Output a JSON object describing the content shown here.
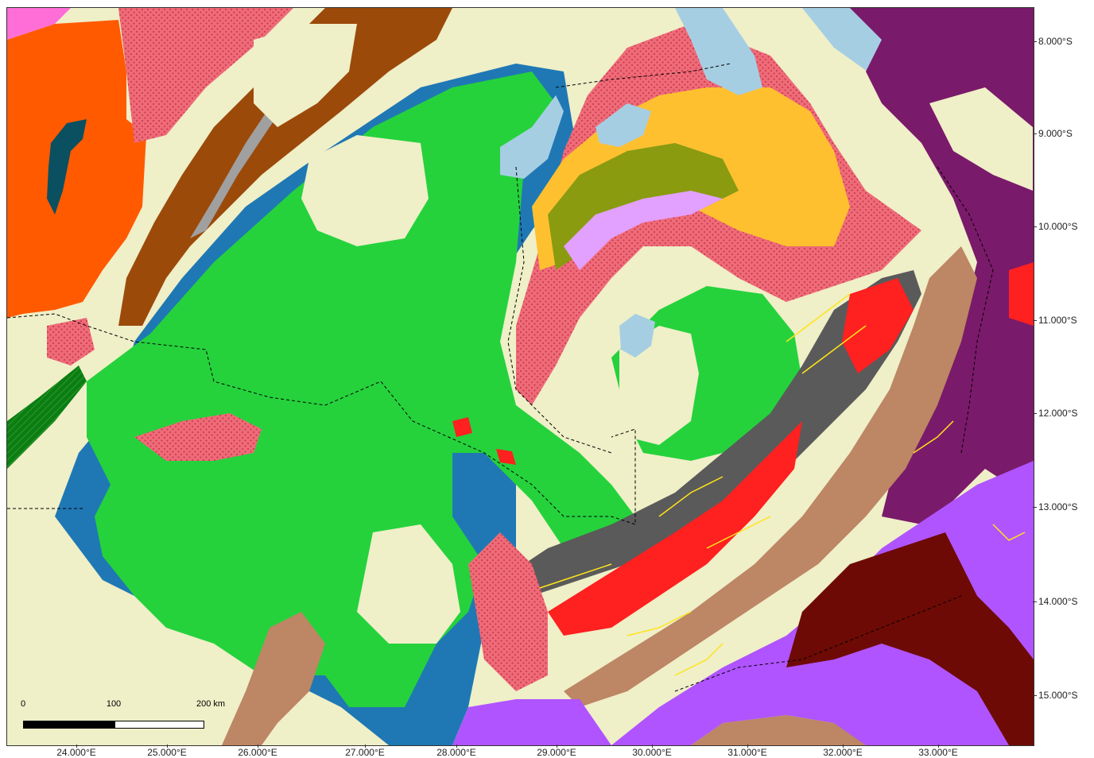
{
  "map": {
    "colors": {
      "background": "#efefc8",
      "green": "#25d23c",
      "blue": "#1f78b4",
      "pink_stipple": "#ee6b78",
      "orange": "#ff5a00",
      "brown": "#9b4a0a",
      "tan": "#bd8664",
      "purple": "#7a1a6a",
      "violet": "#b054ff",
      "dark_red": "#6e0a05",
      "red": "#ff2020",
      "dark_gray": "#5a5a5a",
      "yellow": "#ffe41a",
      "amber": "#ffc030",
      "olive": "#8a9b10",
      "lake_blue": "#a6cee3",
      "lilac": "#e2a0ff",
      "gray": "#a0a0a0",
      "dark_green": "#0b7d12",
      "teal": "#0a5060"
    },
    "lat_labels": [
      "8.000°S",
      "9.000°S",
      "10.000°S",
      "11.000°S",
      "12.000°S",
      "13.000°S",
      "14.000°S",
      "15.000°S"
    ],
    "lon_labels": [
      "24.000°E",
      "25.000°E",
      "26.000°E",
      "27.000°E",
      "28.000°E",
      "29.000°E",
      "30.000°E",
      "31.000°E",
      "32.000°E",
      "33.000°E"
    ],
    "scale_bar": {
      "labels": [
        "0",
        "100",
        "200 km"
      ]
    }
  }
}
